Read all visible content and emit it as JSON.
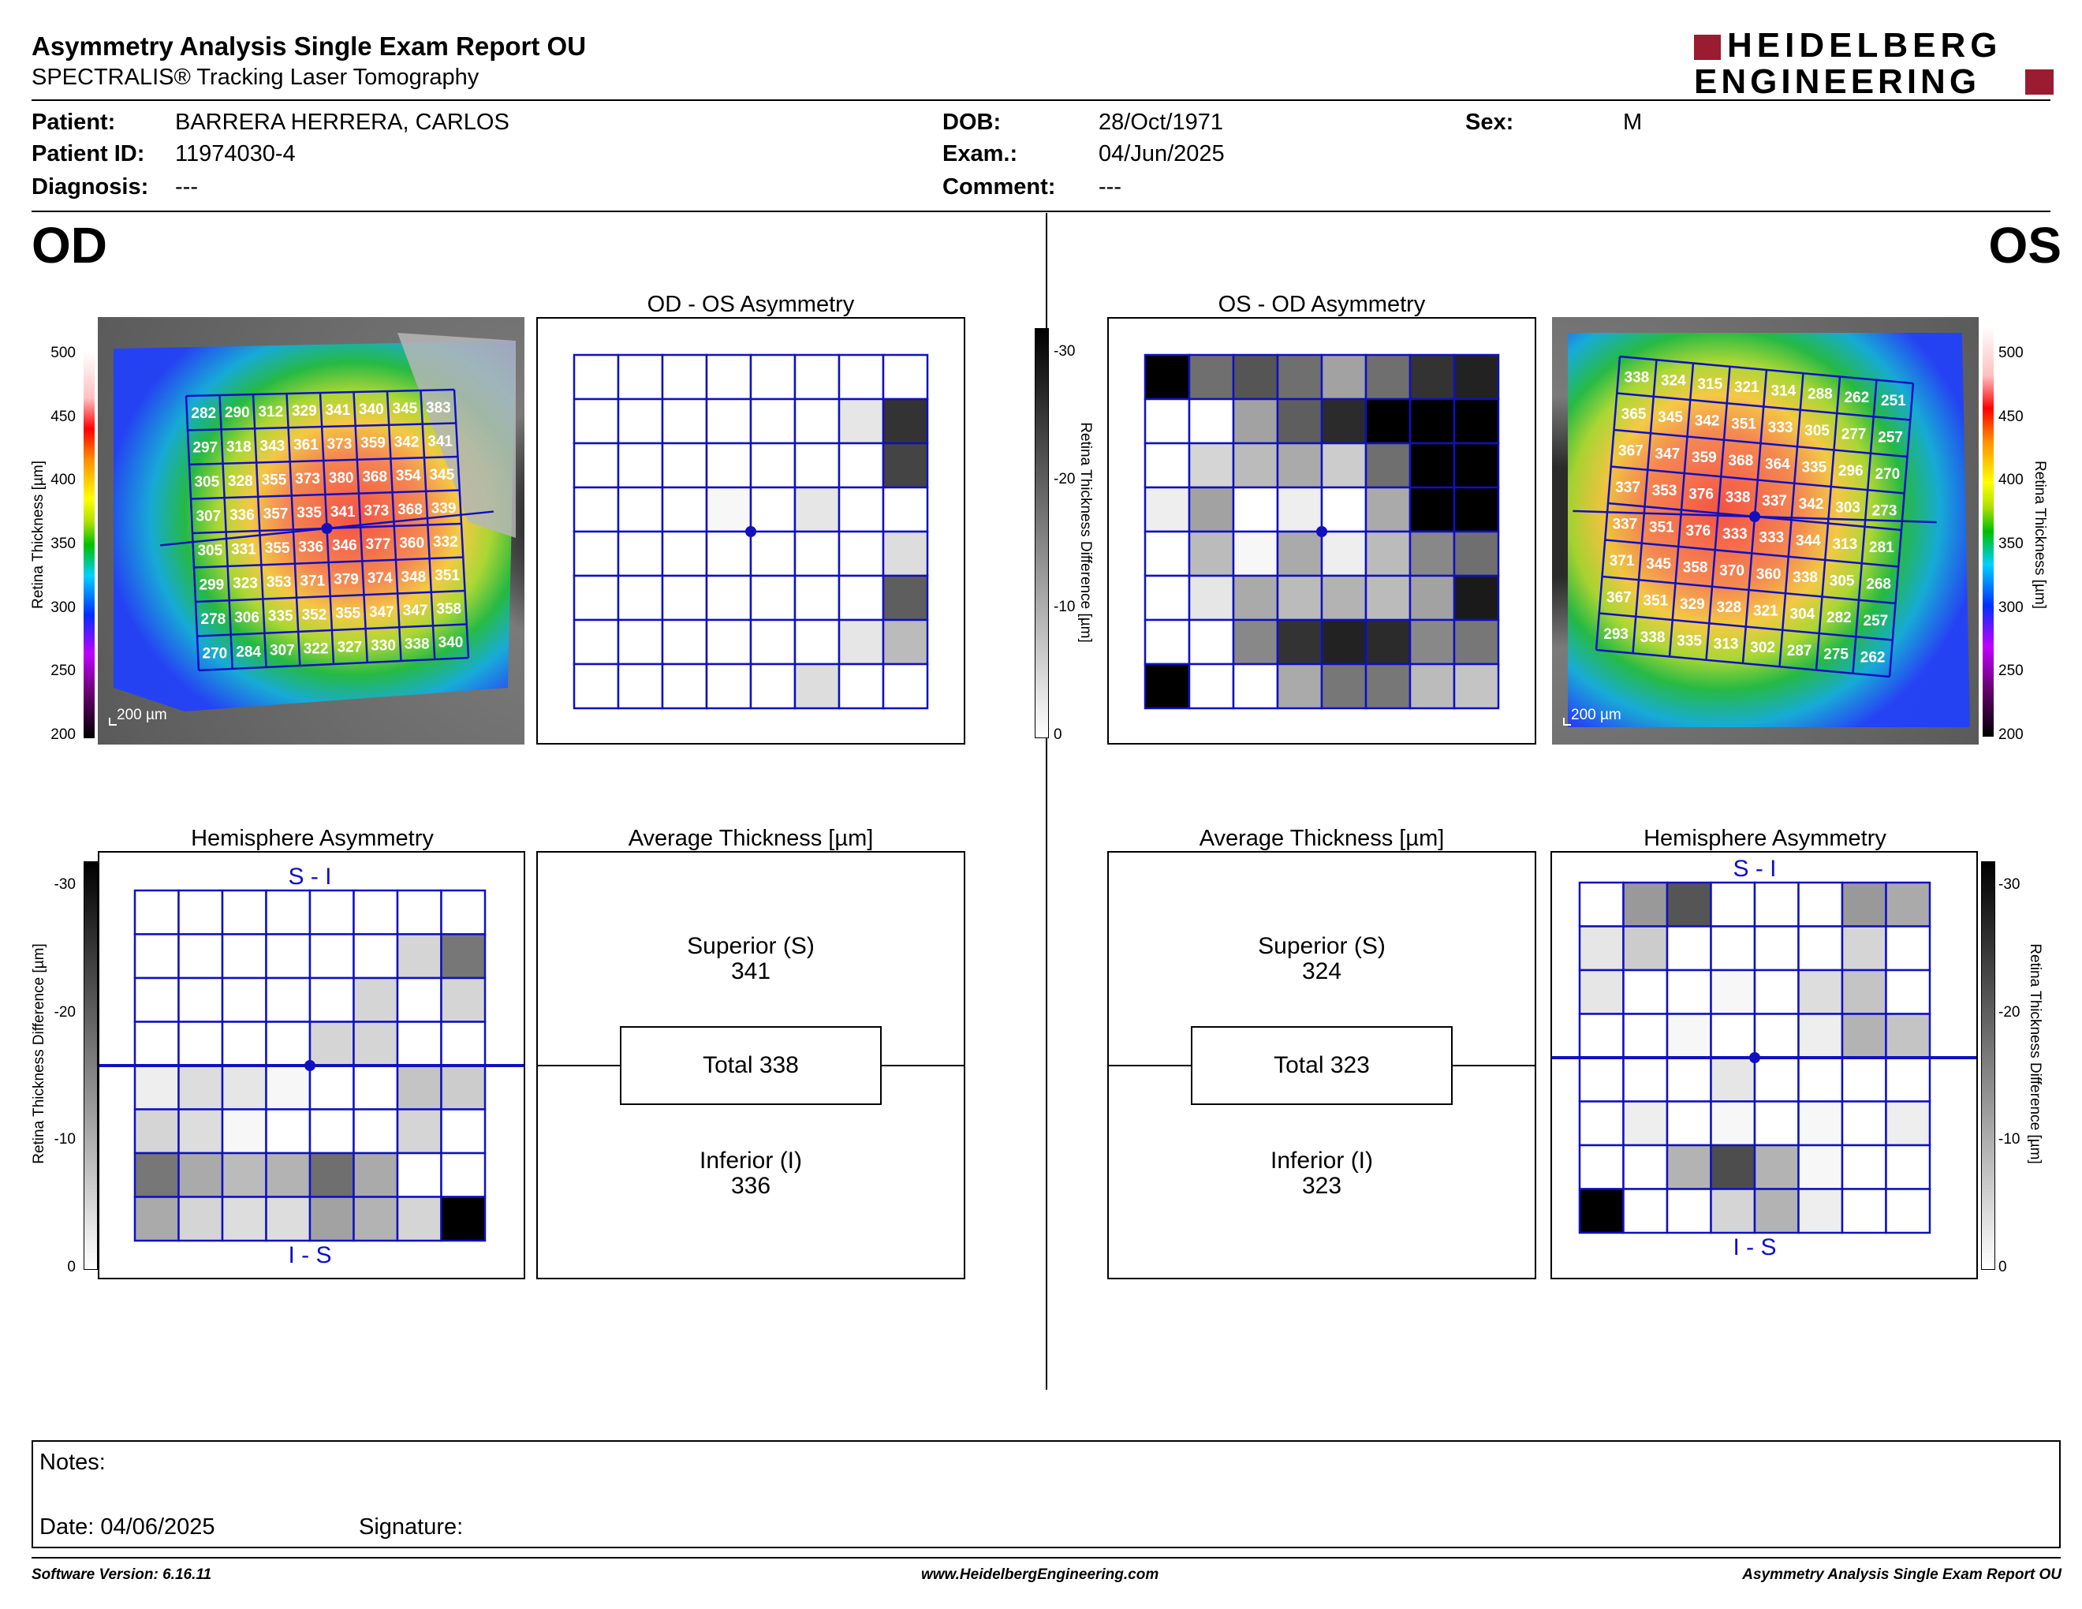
{
  "header": {
    "title": "Asymmetry Analysis Single Exam Report OU",
    "subtitle": "SPECTRALIS® Tracking Laser Tomography",
    "logo_line1": "HEIDELBERG",
    "logo_line2": "ENGINEERING"
  },
  "patient": {
    "patient_label": "Patient:",
    "patient_value": "BARRERA HERRERA, CARLOS",
    "id_label": "Patient ID:",
    "id_value": "11974030-4",
    "diagnosis_label": "Diagnosis:",
    "diagnosis_value": "---",
    "dob_label": "DOB:",
    "dob_value": "28/Oct/1971",
    "exam_label": "Exam.:",
    "exam_value": "04/Jun/2025",
    "comment_label": "Comment:",
    "comment_value": "---",
    "sex_label": "Sex:",
    "sex_value": "M"
  },
  "eyes": {
    "od": "OD",
    "os": "OS"
  },
  "titles": {
    "od_os": "OD - OS Asymmetry",
    "os_od": "OS - OD Asymmetry",
    "hemi": "Hemisphere Asymmetry",
    "avg": "Average Thickness [µm]"
  },
  "scales": {
    "thickness_ticks": [
      "500",
      "450",
      "400",
      "350",
      "300",
      "250",
      "200"
    ],
    "thickness_label": "Retina Thickness [µm]",
    "diff_ticks": [
      "-30",
      "-20",
      "-10",
      "0"
    ],
    "diff_label": "Retina Thickness Difference [µm]",
    "scalebar": "200 µm"
  },
  "hemi_labels": {
    "si": "S - I",
    "is": "I - S"
  },
  "od": {
    "thickness": [
      [
        282,
        290,
        312,
        329,
        341,
        340,
        345,
        383
      ],
      [
        297,
        318,
        343,
        361,
        373,
        359,
        342,
        341
      ],
      [
        305,
        328,
        355,
        373,
        380,
        368,
        354,
        345
      ],
      [
        307,
        336,
        357,
        335,
        341,
        373,
        368,
        339
      ],
      [
        305,
        331,
        355,
        336,
        346,
        377,
        360,
        332
      ],
      [
        299,
        323,
        353,
        371,
        379,
        374,
        348,
        351
      ],
      [
        278,
        306,
        335,
        352,
        355,
        347,
        347,
        358
      ],
      [
        270,
        284,
        307,
        322,
        327,
        330,
        338,
        340
      ]
    ],
    "asymmetry": [
      [
        0,
        0,
        0,
        0,
        0,
        0,
        0,
        0
      ],
      [
        0,
        0,
        0,
        0,
        0,
        0,
        3,
        24
      ],
      [
        0,
        0,
        0,
        0,
        0,
        0,
        0,
        22
      ],
      [
        0,
        0,
        0,
        1,
        0,
        3,
        0,
        0
      ],
      [
        0,
        0,
        0,
        0,
        0,
        0,
        0,
        4
      ],
      [
        0,
        0,
        0,
        0,
        0,
        0,
        0,
        19
      ],
      [
        0,
        0,
        0,
        0,
        0,
        0,
        3,
        8
      ],
      [
        0,
        0,
        0,
        0,
        0,
        4,
        0,
        0
      ]
    ],
    "hemisphere": [
      [
        0,
        0,
        0,
        0,
        0,
        0,
        0,
        0
      ],
      [
        0,
        0,
        0,
        0,
        0,
        0,
        5,
        16
      ],
      [
        0,
        0,
        0,
        0,
        0,
        5,
        0,
        5
      ],
      [
        0,
        0,
        0,
        0,
        5,
        5,
        0,
        0
      ],
      [
        2,
        4,
        3,
        1,
        0,
        0,
        7,
        6
      ],
      [
        5,
        4,
        1,
        0,
        0,
        0,
        5,
        0
      ],
      [
        16,
        10,
        8,
        9,
        17,
        10,
        0,
        0
      ],
      [
        10,
        5,
        4,
        4,
        11,
        9,
        5,
        30
      ]
    ],
    "avg": {
      "superior_label": "Superior (S)",
      "superior_value": "341",
      "total": "Total 338",
      "inferior_label": "Inferior (I)",
      "inferior_value": "336"
    }
  },
  "os": {
    "thickness": [
      [
        338,
        324,
        315,
        321,
        314,
        288,
        262,
        251
      ],
      [
        365,
        345,
        342,
        351,
        333,
        305,
        277,
        257
      ],
      [
        367,
        347,
        359,
        368,
        364,
        335,
        296,
        270
      ],
      [
        337,
        353,
        376,
        338,
        337,
        342,
        303,
        273
      ],
      [
        337,
        351,
        376,
        333,
        333,
        344,
        313,
        281
      ],
      [
        371,
        345,
        358,
        370,
        360,
        338,
        305,
        268
      ],
      [
        367,
        351,
        329,
        328,
        321,
        304,
        282,
        257
      ],
      [
        293,
        338,
        335,
        313,
        302,
        287,
        275,
        262
      ]
    ],
    "asymmetry": [
      [
        30,
        17,
        20,
        17,
        11,
        17,
        24,
        26
      ],
      [
        0,
        0,
        11,
        19,
        25,
        30,
        30,
        30
      ],
      [
        0,
        5,
        8,
        10,
        6,
        17,
        30,
        30
      ],
      [
        2,
        11,
        0,
        2,
        0,
        10,
        30,
        30
      ],
      [
        0,
        8,
        1,
        10,
        2,
        8,
        14,
        17
      ],
      [
        0,
        3,
        10,
        8,
        9,
        8,
        11,
        27
      ],
      [
        0,
        0,
        14,
        24,
        26,
        25,
        14,
        16
      ],
      [
        30,
        0,
        0,
        10,
        16,
        16,
        8,
        7
      ]
    ],
    "hemisphere": [
      [
        0,
        12,
        20,
        0,
        0,
        0,
        12,
        10
      ],
      [
        3,
        6,
        0,
        0,
        0,
        0,
        5,
        0
      ],
      [
        3,
        0,
        0,
        1,
        0,
        4,
        7,
        0
      ],
      [
        0,
        0,
        1,
        0,
        0,
        2,
        9,
        7
      ],
      [
        0,
        0,
        0,
        3,
        0,
        0,
        0,
        0
      ],
      [
        0,
        2,
        0,
        1,
        0,
        1,
        0,
        2
      ],
      [
        0,
        0,
        9,
        21,
        9,
        1,
        0,
        0
      ],
      [
        30,
        0,
        0,
        5,
        9,
        2,
        0,
        0
      ]
    ],
    "avg": {
      "superior_label": "Superior (S)",
      "superior_value": "324",
      "total": "Total 323",
      "inferior_label": "Inferior (I)",
      "inferior_value": "323"
    }
  },
  "notes": {
    "notes_label": "Notes:",
    "date_label": "Date: 04/06/2025",
    "signature_label": "Signature:"
  },
  "footer": {
    "software": "Software Version: 6.16.11",
    "website": "www.HeidelbergEngineering.com",
    "report": "Asymmetry Analysis Single Exam Report OU"
  },
  "colors": {
    "grid_blue": "#1010c0",
    "logo_red": "#9b1b30"
  }
}
